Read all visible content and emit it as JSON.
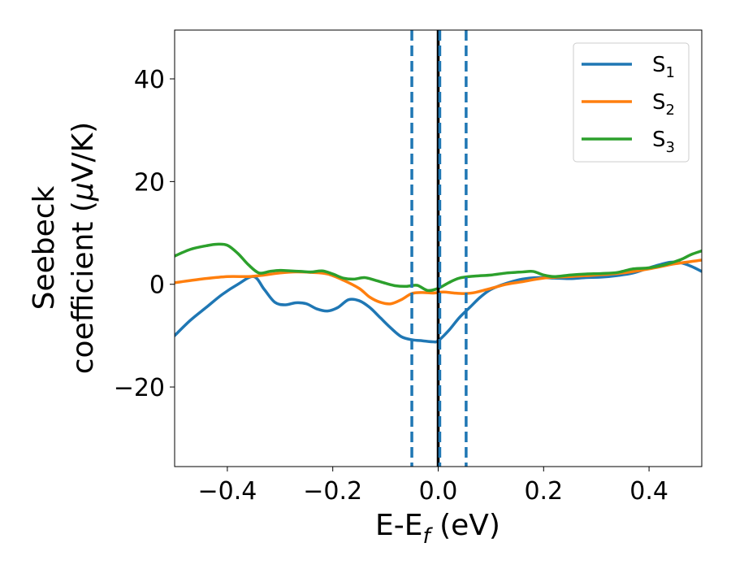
{
  "chart_data": {
    "type": "line",
    "xlabel": "E-E",
    "xlabel_sub": "f",
    "xlabel_unit": " (eV)",
    "ylabel_line1": "Seebeck",
    "ylabel_line2": "coefficient  (",
    "ylabel_mu": "μ",
    "ylabel_unit": "V/K)",
    "xlim": [
      -0.5,
      0.5
    ],
    "ylim": [
      -35.5,
      49.5
    ],
    "xticks": [
      -0.4,
      -0.2,
      0.0,
      0.2,
      0.4
    ],
    "xtick_labels": [
      "−0.4",
      "−0.2",
      "0.0",
      "0.2",
      "0.4"
    ],
    "yticks": [
      -20,
      0,
      20,
      40
    ],
    "ytick_labels": [
      "−20",
      "0",
      "20",
      "40"
    ],
    "grid": false,
    "legend_position": "top-right",
    "vertical_lines": [
      {
        "x": -0.05,
        "style": "dashed",
        "color": "#1f77b4"
      },
      {
        "x": 0.0,
        "style": "solid",
        "color": "#000000"
      },
      {
        "x": 0.003,
        "style": "dashed",
        "color": "#1f77b4"
      },
      {
        "x": 0.053,
        "style": "dashed",
        "color": "#1f77b4"
      }
    ],
    "series": [
      {
        "name": "S",
        "sub": "1",
        "color": "#1f77b4",
        "x": [
          -0.5,
          -0.47,
          -0.44,
          -0.41,
          -0.38,
          -0.35,
          -0.33,
          -0.31,
          -0.29,
          -0.27,
          -0.25,
          -0.23,
          -0.21,
          -0.19,
          -0.17,
          -0.15,
          -0.13,
          -0.11,
          -0.09,
          -0.07,
          -0.05,
          -0.03,
          -0.01,
          0.0,
          0.02,
          0.04,
          0.06,
          0.08,
          0.1,
          0.13,
          0.16,
          0.19,
          0.22,
          0.25,
          0.28,
          0.31,
          0.34,
          0.37,
          0.4,
          0.42,
          0.44,
          0.46,
          0.48,
          0.5
        ],
        "y": [
          -10,
          -7,
          -4.5,
          -2,
          0,
          1.5,
          -1,
          -3.5,
          -4,
          -3.6,
          -3.8,
          -4.8,
          -5.2,
          -4.5,
          -3,
          -3.2,
          -4.5,
          -6.5,
          -8.5,
          -10.2,
          -10.8,
          -11,
          -11.2,
          -11,
          -9,
          -6.5,
          -4.5,
          -2.5,
          -1,
          0.2,
          1,
          1.3,
          1.2,
          1.1,
          1.3,
          1.4,
          1.7,
          2.2,
          3.2,
          3.8,
          4.3,
          4.2,
          3.5,
          2.5
        ]
      },
      {
        "name": "S",
        "sub": "2",
        "color": "#ff7f0e",
        "x": [
          -0.5,
          -0.45,
          -0.4,
          -0.36,
          -0.33,
          -0.3,
          -0.27,
          -0.24,
          -0.21,
          -0.18,
          -0.15,
          -0.13,
          -0.11,
          -0.09,
          -0.07,
          -0.05,
          -0.03,
          -0.01,
          0.01,
          0.03,
          0.05,
          0.07,
          0.1,
          0.13,
          0.16,
          0.2,
          0.25,
          0.3,
          0.35,
          0.4,
          0.45,
          0.5
        ],
        "y": [
          0.3,
          1,
          1.5,
          1.5,
          1.8,
          2.2,
          2.4,
          2.3,
          2.0,
          0.8,
          -0.8,
          -2.5,
          -3.5,
          -3.8,
          -3,
          -1.8,
          -1.6,
          -1.7,
          -1.5,
          -1.7,
          -1.8,
          -1.6,
          -0.8,
          0,
          0.5,
          1.2,
          1.5,
          1.8,
          2.2,
          3.0,
          4.0,
          4.7
        ]
      },
      {
        "name": "S",
        "sub": "3",
        "color": "#2ca02c",
        "x": [
          -0.5,
          -0.47,
          -0.44,
          -0.42,
          -0.4,
          -0.38,
          -0.36,
          -0.34,
          -0.32,
          -0.3,
          -0.28,
          -0.26,
          -0.24,
          -0.22,
          -0.2,
          -0.18,
          -0.16,
          -0.14,
          -0.12,
          -0.1,
          -0.08,
          -0.06,
          -0.04,
          -0.02,
          0.0,
          0.02,
          0.04,
          0.07,
          0.1,
          0.13,
          0.16,
          0.18,
          0.2,
          0.22,
          0.25,
          0.28,
          0.31,
          0.34,
          0.37,
          0.4,
          0.43,
          0.46,
          0.48,
          0.5
        ],
        "y": [
          5.5,
          6.8,
          7.5,
          7.8,
          7.6,
          6,
          3.8,
          2.2,
          2.5,
          2.7,
          2.6,
          2.5,
          2.4,
          2.6,
          2,
          1.2,
          1,
          1.3,
          0.8,
          0.2,
          -0.3,
          -0.4,
          -0.2,
          -1.2,
          -0.8,
          0.3,
          1.2,
          1.6,
          1.8,
          2.2,
          2.4,
          2.5,
          1.8,
          1.5,
          1.8,
          2,
          2.1,
          2.3,
          3,
          3.2,
          3.8,
          4.8,
          5.8,
          6.5
        ]
      }
    ]
  }
}
